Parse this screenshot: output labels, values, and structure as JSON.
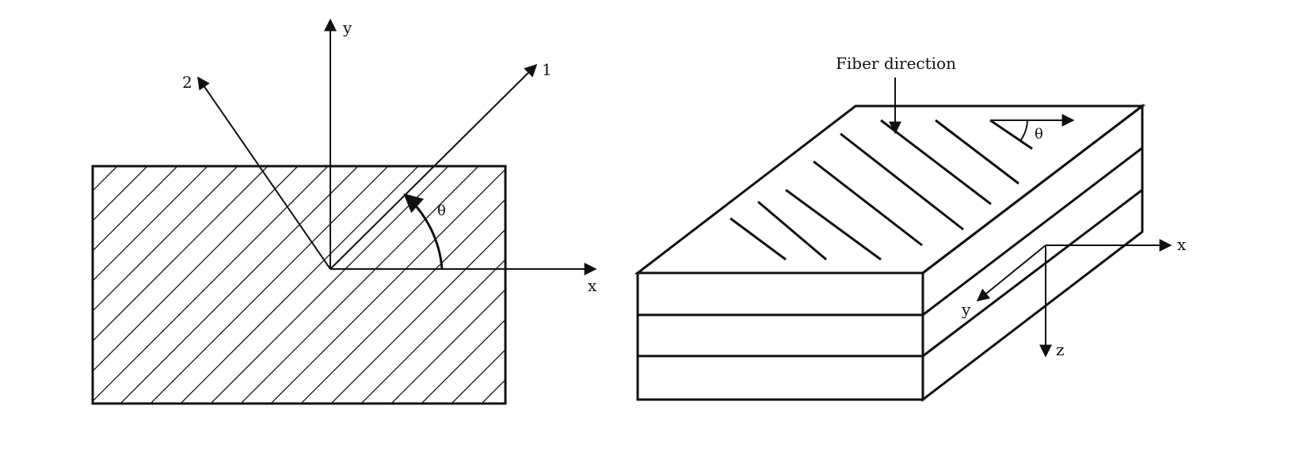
{
  "left_diagram": {
    "axis_labels": {
      "x": "x",
      "y": "y",
      "fiber_1": "1",
      "fiber_2": "2"
    },
    "angle_label": "θ"
  },
  "right_diagram": {
    "annotation": "Fiber direction",
    "angle_label": "θ",
    "axis_labels": {
      "x": "x",
      "y": "y",
      "z": "z"
    },
    "ply_count": 3
  },
  "colors": {
    "line": "#111111",
    "background": "#ffffff"
  }
}
